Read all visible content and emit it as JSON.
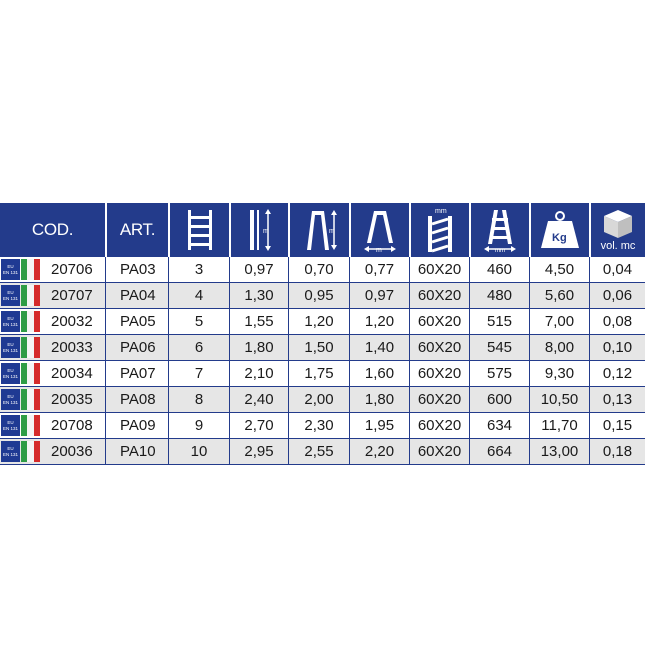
{
  "header": {
    "cod": "COD.",
    "art": "ART.",
    "icons": [
      "steps-icon",
      "height-m-icon",
      "closed-height-icon",
      "base-width-icon",
      "profile-mm-icon",
      "base-mm-icon",
      "weight-kg-icon",
      "volume-box-icon"
    ],
    "kg_label": "Kg",
    "volume_label": "vol. mc",
    "m_label": "m",
    "mm_label": "mm"
  },
  "badge": {
    "eu": "EU",
    "en": "EN 131"
  },
  "rows": [
    {
      "cod": "20706",
      "art": "PA03",
      "steps": "3",
      "h1": "0,97",
      "h2": "0,70",
      "w": "0,77",
      "profile": "60X20",
      "base": "460",
      "kg": "4,50",
      "vol": "0,04"
    },
    {
      "cod": "20707",
      "art": "PA04",
      "steps": "4",
      "h1": "1,30",
      "h2": "0,95",
      "w": "0,97",
      "profile": "60X20",
      "base": "480",
      "kg": "5,60",
      "vol": "0,06"
    },
    {
      "cod": "20032",
      "art": "PA05",
      "steps": "5",
      "h1": "1,55",
      "h2": "1,20",
      "w": "1,20",
      "profile": "60X20",
      "base": "515",
      "kg": "7,00",
      "vol": "0,08"
    },
    {
      "cod": "20033",
      "art": "PA06",
      "steps": "6",
      "h1": "1,80",
      "h2": "1,50",
      "w": "1,40",
      "profile": "60X20",
      "base": "545",
      "kg": "8,00",
      "vol": "0,10"
    },
    {
      "cod": "20034",
      "art": "PA07",
      "steps": "7",
      "h1": "2,10",
      "h2": "1,75",
      "w": "1,60",
      "profile": "60X20",
      "base": "575",
      "kg": "9,30",
      "vol": "0,12"
    },
    {
      "cod": "20035",
      "art": "PA08",
      "steps": "8",
      "h1": "2,40",
      "h2": "2,00",
      "w": "1,80",
      "profile": "60X20",
      "base": "600",
      "kg": "10,50",
      "vol": "0,13"
    },
    {
      "cod": "20708",
      "art": "PA09",
      "steps": "9",
      "h1": "2,70",
      "h2": "2,30",
      "w": "1,95",
      "profile": "60X20",
      "base": "634",
      "kg": "11,70",
      "vol": "0,15"
    },
    {
      "cod": "20036",
      "art": "PA10",
      "steps": "10",
      "h1": "2,95",
      "h2": "2,55",
      "w": "2,20",
      "profile": "60X20",
      "base": "664",
      "kg": "13,00",
      "vol": "0,18"
    }
  ],
  "colors": {
    "header_bg": "#233b8b",
    "row_alt": "#e6e6e6"
  }
}
